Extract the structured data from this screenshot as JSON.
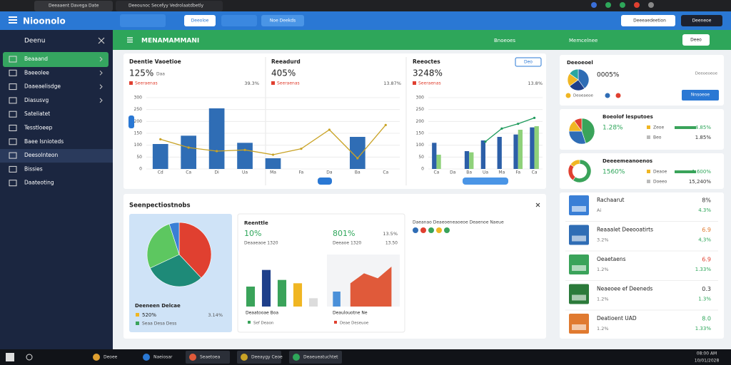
{
  "browser": {
    "tabs": [
      "Deeaaent Davega Date",
      "Deeounoc Secefyy Vedrolaatdbetly"
    ]
  },
  "app": {
    "logo": "Nioonolo",
    "toolbar": [
      "Deeoloe",
      "Noe Deekds"
    ],
    "search": "Deeeaedeetion",
    "user": "Deeneoe"
  },
  "sidebar": {
    "title": "Deenu",
    "active": 0,
    "items": [
      "Beaaand",
      "Baeeolee",
      "Daaeaelisdge",
      "Diasusvg",
      "Sateliatet",
      "Tesstloeep",
      "Baee Isnioteds",
      "Deesolnteon",
      "Bissies",
      "Daateoting"
    ]
  },
  "header": {
    "title": "MENAMAMMANI",
    "action": "Bnoeoes",
    "right": "Memcelnee",
    "button": "Deeo"
  },
  "panels": [
    {
      "title": "Deentie Vaoetioe",
      "value": "125%",
      "sub": "Daa",
      "note": "Seeraenas",
      "stat": "39.3%"
    },
    {
      "title": "Reeadurd",
      "value": "405%",
      "sub": "",
      "note": "Seeraenas",
      "stat": "13.87%"
    },
    {
      "title": "Reeoctes",
      "value": "3248%",
      "sub": "",
      "note": "Seeraenas",
      "stat": "13.8%",
      "button": "Deo"
    }
  ],
  "charts": [
    {
      "type": "combo",
      "categories": [
        "Cd",
        "Ca",
        "Di",
        "Ua",
        "Ma",
        "Fa",
        "Da",
        "Ba",
        "Ca"
      ],
      "ylim": [
        0,
        300
      ],
      "yticks": [
        0,
        50,
        100,
        150,
        200,
        250,
        300
      ],
      "series": [
        {
          "type": "bar",
          "color": "#2f6db5",
          "values": [
            105,
            140,
            255,
            110,
            45,
            null,
            null,
            135,
            null
          ]
        },
        {
          "type": "line",
          "color": "#c9a326",
          "values": [
            125,
            90,
            75,
            80,
            60,
            85,
            165,
            45,
            185
          ]
        }
      ]
    },
    {
      "type": "combo",
      "categories": [
        "Ca",
        "Da",
        "Ba",
        "Ua",
        "Ma",
        "Fa",
        "Ca"
      ],
      "ylim": [
        0,
        300
      ],
      "yticks": [
        0,
        50,
        100,
        150,
        200,
        250,
        300
      ],
      "series": [
        {
          "type": "bar",
          "color": "#2c5fa8",
          "values": [
            110,
            null,
            75,
            120,
            135,
            145,
            175
          ]
        },
        {
          "type": "bar",
          "color": "#8fd17a",
          "values": [
            60,
            null,
            70,
            null,
            null,
            165,
            180
          ]
        },
        {
          "type": "line",
          "color": "#1e9a5c",
          "values": [
            null,
            null,
            null,
            115,
            170,
            190,
            215
          ]
        }
      ]
    },
    {
      "type": "bar",
      "ylim": [
        0,
        150
      ],
      "series": [
        {
          "type": "bar",
          "colors": [
            "#3aa35a",
            "#1e3f8a",
            "#3aa35a",
            "#f0b623",
            "#dcdcdc"
          ],
          "values": [
            60,
            110,
            80,
            70,
            25
          ]
        }
      ]
    },
    {
      "type": "area",
      "ylim": [
        0,
        150
      ],
      "series": [
        {
          "type": "bar",
          "color": "#4a90d9",
          "values": [
            45,
            null,
            null,
            null,
            null
          ]
        },
        {
          "type": "area",
          "color": "#e05a3a",
          "values": [
            null,
            70,
            100,
            85,
            120
          ]
        }
      ]
    }
  ],
  "section": {
    "title": "Seenpectiostnobs",
    "pie": {
      "title": "Deeneen Delcae",
      "legend": "520%",
      "stat": "3.14%",
      "note": "Seaa Desa Dess",
      "values": [
        38,
        30,
        27,
        5
      ],
      "colors": [
        "#e04030",
        "#1e8a78",
        "#5dc760",
        "#3a7fd6"
      ]
    },
    "summary": {
      "title": "Reenttle",
      "values": [
        "10%",
        "801%"
      ],
      "stat": "13.5%",
      "subs": [
        "Deaaeaoe 1320",
        "Deeaoe 1320",
        "13.50"
      ],
      "labels": [
        "Deaatooae Boa",
        "Deaulouotne Ne"
      ],
      "notes": [
        "Sef Deaon",
        "Deae Deseuoe"
      ]
    },
    "legend": "Daeanao Deaeoeneaoeoe Deaenoe Naeue"
  },
  "right": {
    "cardA": {
      "title": "Deeoeoel",
      "value": "0005%",
      "sub": "Deeoeoeoe",
      "legend": "Deoeaeoe",
      "button": "Nnsoeoe",
      "values": [
        40,
        25,
        20,
        15
      ],
      "colors": [
        "#2f6db5",
        "#1e3f8a",
        "#f0b623",
        "#2aa6a0"
      ]
    },
    "cardB": {
      "title": "Boeolof lesputoes",
      "value": "1.28%",
      "labels": [
        "Zeoe",
        "Beo"
      ],
      "stats": [
        "4.85%",
        "1.85%"
      ],
      "values": [
        45,
        30,
        15,
        10
      ],
      "colors": [
        "#3aa35a",
        "#2f6db5",
        "#f0b623",
        "#e04030"
      ]
    },
    "cardC": {
      "title": "Deeeemeanoenos",
      "value": "1560%",
      "labels": [
        "Deaoe",
        "Doeeo"
      ],
      "stats": [
        "1.600%",
        "15,240%"
      ],
      "values": [
        60,
        25,
        15
      ],
      "colors": [
        "#3aa35a",
        "#e04030",
        "#f0b623"
      ]
    },
    "items": [
      {
        "title": "Rachaarut",
        "sub": "Ai",
        "v1": "8%",
        "v2": "4.3%"
      },
      {
        "title": "Reaaalet Deeooatirts",
        "sub": "3.2%",
        "v1": "6.9",
        "v2": "4,3%"
      },
      {
        "title": "Oeaetaens",
        "sub": "1.2%",
        "v1": "6.9",
        "v2": "1.33%"
      },
      {
        "title": "Neaeoee ef Deeneds",
        "sub": "1.2%",
        "v1": "0.3",
        "v2": "1.3%"
      },
      {
        "title": "Deatioent UAD",
        "sub": "1.2%",
        "v1": "8.0",
        "v2": "1.33%"
      }
    ]
  },
  "taskbar": {
    "items": [
      "Deoee",
      "Naeiosar",
      "Seaetoea",
      "Deeaygy Ceoe",
      "Deaeueatuchtet"
    ],
    "time": "08:00 AM",
    "date": "10/01/2028"
  }
}
